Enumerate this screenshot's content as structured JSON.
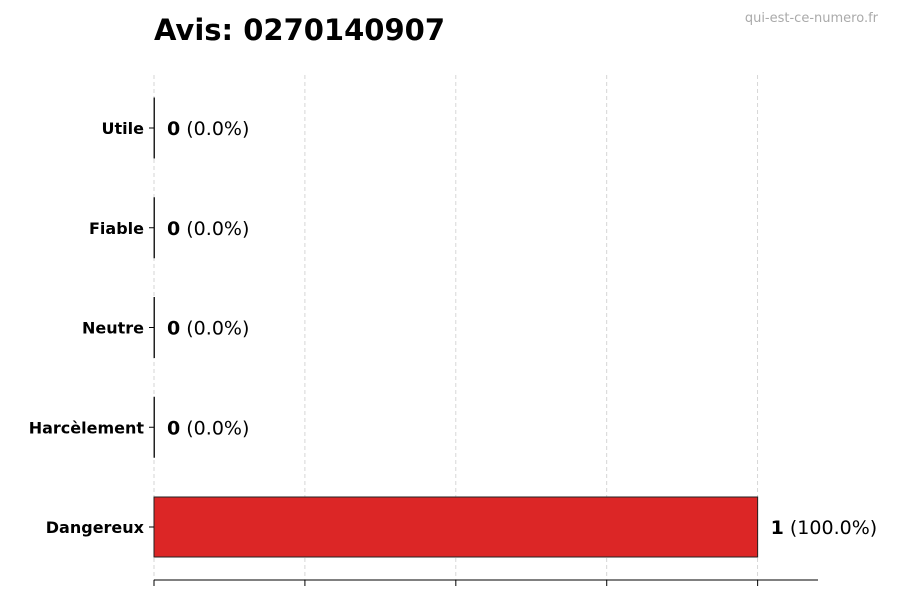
{
  "watermark": "qui-est-ce-numero.fr",
  "chart_data": {
    "type": "bar",
    "orientation": "horizontal",
    "title": "Avis: 0270140907",
    "categories": [
      "Utile",
      "Fiable",
      "Neutre",
      "Harcèlement",
      "Dangereux"
    ],
    "values": [
      0,
      0,
      0,
      0,
      1
    ],
    "value_labels": [
      "0",
      "0",
      "0",
      "0",
      "1"
    ],
    "percent_labels": [
      "(0.0%)",
      "(0.0%)",
      "(0.0%)",
      "(0.0%)",
      "(100.0%)"
    ],
    "colors": [
      "#dc2626",
      "#dc2626",
      "#dc2626",
      "#dc2626",
      "#dc2626"
    ],
    "xlim": [
      0,
      1.1
    ],
    "xticks": [
      0,
      0.25,
      0.5,
      0.75,
      1
    ],
    "xtick_labels_visible": false,
    "grid": "x dashed",
    "xlabel": "",
    "ylabel": ""
  }
}
